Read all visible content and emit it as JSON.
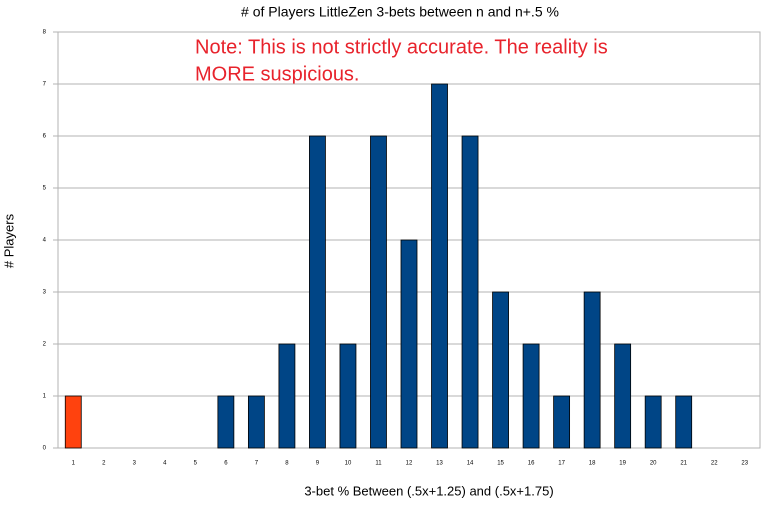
{
  "chart_data": {
    "type": "bar",
    "title": "# of Players LittleZen 3-bets between n and n+.5 %",
    "annotation": [
      "Note: This is not strictly accurate. The reality is",
      "MORE suspicious."
    ],
    "x_label": "3-bet % Between (.5x+1.25) and (.5x+1.75)",
    "y_label": "# Players",
    "categories": [
      1,
      2,
      3,
      4,
      5,
      6,
      7,
      8,
      9,
      10,
      11,
      12,
      13,
      14,
      15,
      16,
      17,
      18,
      19,
      20,
      21,
      22,
      23
    ],
    "values": [
      1,
      0,
      0,
      0,
      0,
      1,
      1,
      2,
      6,
      2,
      6,
      4,
      7,
      6,
      3,
      2,
      1,
      3,
      2,
      1,
      1,
      0,
      0
    ],
    "colors": [
      "#ff420e",
      "#004586",
      "#004586",
      "#004586",
      "#004586",
      "#004586",
      "#004586",
      "#004586",
      "#004586",
      "#004586",
      "#004586",
      "#004586",
      "#004586",
      "#004586",
      "#004586",
      "#004586",
      "#004586",
      "#004586",
      "#004586",
      "#004586",
      "#004586",
      "#004586",
      "#004586"
    ],
    "ylim": [
      0,
      8
    ],
    "yticks": [
      0,
      1,
      2,
      3,
      4,
      5,
      6,
      7,
      8
    ],
    "grid": true
  }
}
